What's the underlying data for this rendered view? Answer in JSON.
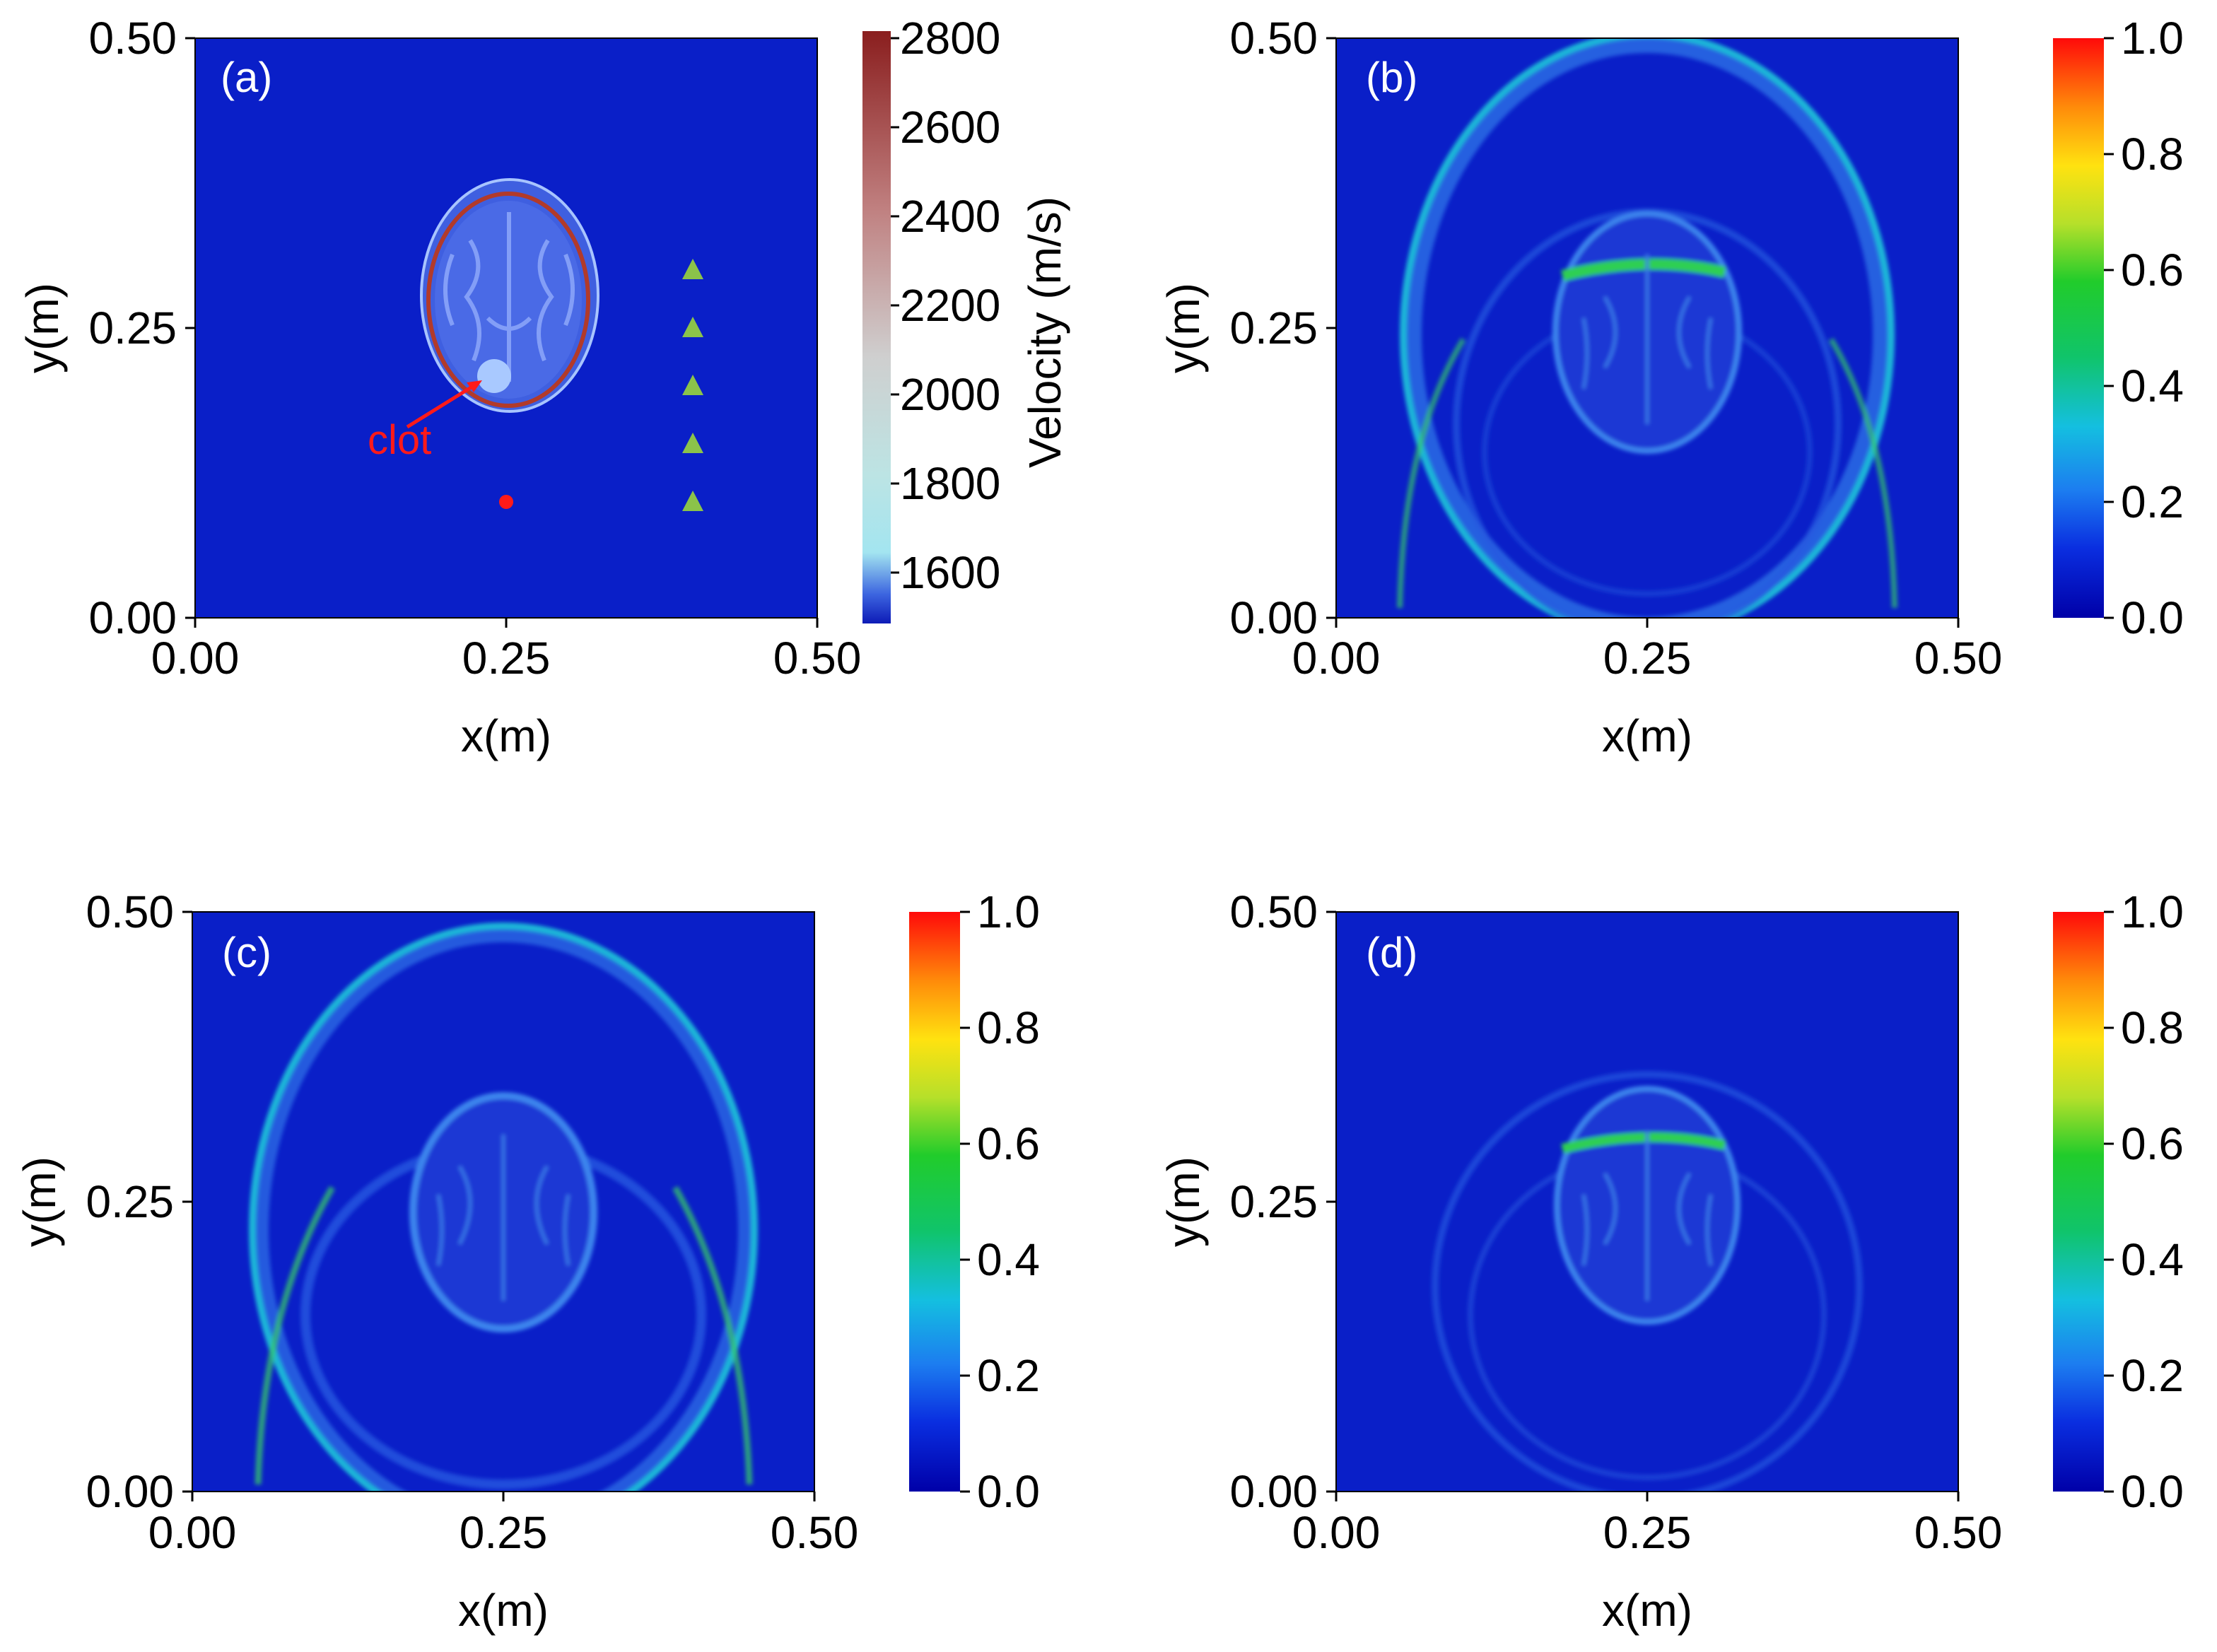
{
  "figure": {
    "panels": [
      {
        "id": "a",
        "label": "(a)",
        "xlabel": "x(m)",
        "ylabel": "y(m)",
        "x_ticks": [
          "0.00",
          "0.25",
          "0.50"
        ],
        "y_ticks": [
          "0.00",
          "0.25",
          "0.50"
        ],
        "colorbar": {
          "label": "Velocity (m/s)",
          "ticks": [
            "1600",
            "1800",
            "2000",
            "2200",
            "2400",
            "2600",
            "2800"
          ]
        },
        "annotation": "clot"
      },
      {
        "id": "b",
        "label": "(b)",
        "xlabel": "x(m)",
        "ylabel": "y(m)",
        "x_ticks": [
          "0.00",
          "0.25",
          "0.50"
        ],
        "y_ticks": [
          "0.00",
          "0.25",
          "0.50"
        ],
        "colorbar": {
          "label": "",
          "ticks": [
            "0.0",
            "0.2",
            "0.4",
            "0.6",
            "0.8",
            "1.0"
          ]
        }
      },
      {
        "id": "c",
        "label": "(c)",
        "xlabel": "x(m)",
        "ylabel": "y(m)",
        "x_ticks": [
          "0.00",
          "0.25",
          "0.50"
        ],
        "y_ticks": [
          "0.00",
          "0.25",
          "0.50"
        ],
        "colorbar": {
          "label": "",
          "ticks": [
            "0.0",
            "0.2",
            "0.4",
            "0.6",
            "0.8",
            "1.0"
          ]
        }
      },
      {
        "id": "d",
        "label": "(d)",
        "xlabel": "x(m)",
        "ylabel": "y(m)",
        "x_ticks": [
          "0.00",
          "0.25",
          "0.50"
        ],
        "y_ticks": [
          "0.00",
          "0.25",
          "0.50"
        ],
        "colorbar": {
          "label": "",
          "ticks": [
            "0.0",
            "0.2",
            "0.4",
            "0.6",
            "0.8",
            "1.0"
          ]
        }
      }
    ]
  },
  "chart_data": [
    {
      "type": "heatmap",
      "panel": "a",
      "xlabel": "x(m)",
      "ylabel": "y(m)",
      "xlim": [
        0,
        0.5
      ],
      "ylim": [
        0,
        0.5
      ],
      "colorbar_label": "Velocity (m/s)",
      "colorbar_range": [
        1500,
        2850
      ],
      "colorbar_ticks": [
        1600,
        1800,
        2000,
        2200,
        2400,
        2600,
        2800
      ],
      "background_velocity": 1500,
      "source": {
        "x": 0.25,
        "y": 0.1,
        "color": "#ff1a1a"
      },
      "receivers": {
        "x": [
          0.4,
          0.4,
          0.4,
          0.4,
          0.4
        ],
        "y": [
          0.3,
          0.25,
          0.2,
          0.15,
          0.1
        ],
        "color": "#8bc34a"
      },
      "head": {
        "center": [
          0.252,
          0.243
        ],
        "radii": [
          0.071,
          0.099
        ]
      },
      "clot": {
        "center": [
          0.242,
          0.207
        ],
        "radius": 0.013,
        "label": "clot"
      }
    },
    {
      "type": "heatmap",
      "panel": "b",
      "xlabel": "x(m)",
      "ylabel": "y(m)",
      "xlim": [
        0,
        0.5
      ],
      "ylim": [
        0,
        0.5
      ],
      "colorbar_range": [
        0,
        1
      ],
      "colorbar_ticks": [
        0,
        0.2,
        0.4,
        0.6,
        0.8,
        1.0
      ]
    },
    {
      "type": "heatmap",
      "panel": "c",
      "xlabel": "x(m)",
      "ylabel": "y(m)",
      "xlim": [
        0,
        0.5
      ],
      "ylim": [
        0,
        0.5
      ],
      "colorbar_range": [
        0,
        1
      ],
      "colorbar_ticks": [
        0,
        0.2,
        0.4,
        0.6,
        0.8,
        1.0
      ]
    },
    {
      "type": "heatmap",
      "panel": "d",
      "xlabel": "x(m)",
      "ylabel": "y(m)",
      "xlim": [
        0,
        0.5
      ],
      "ylim": [
        0,
        0.5
      ],
      "colorbar_range": [
        0,
        1
      ],
      "colorbar_ticks": [
        0,
        0.2,
        0.4,
        0.6,
        0.8,
        1.0
      ]
    }
  ],
  "colors": {
    "field_background": "#0a1fc8",
    "head_fill": "#3f5fe0",
    "head_inner": "#5577ee",
    "brain_pattern": "#7f9bf7",
    "skull_rim": "#b23a2a",
    "wave_weak": "#3a86e8",
    "wave_mid": "#21c3d6",
    "wave_strong": "#2fcf52"
  }
}
